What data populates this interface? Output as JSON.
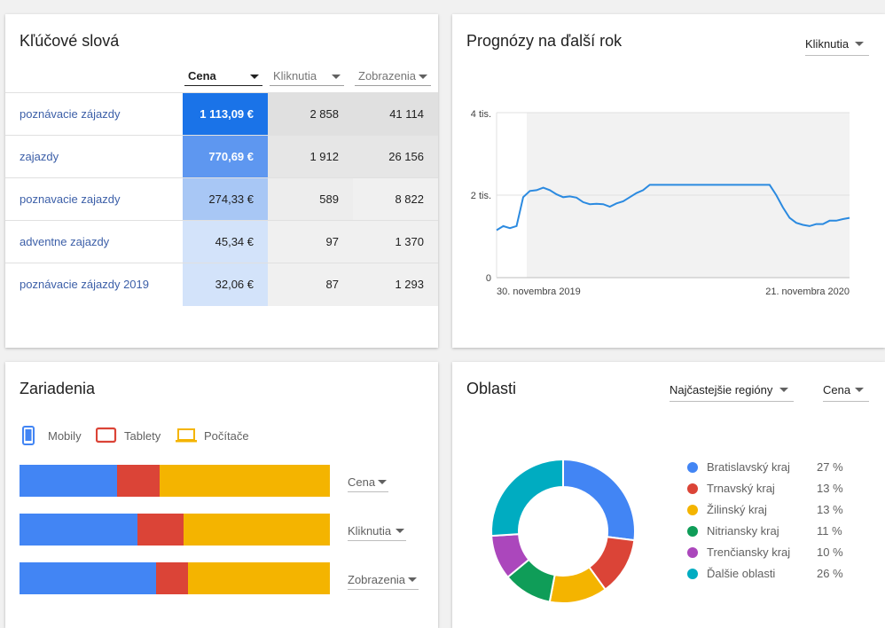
{
  "keywords": {
    "title": "Kľúčové slová",
    "columns": [
      {
        "label": "Cena",
        "active": true
      },
      {
        "label": "Kliknutia",
        "active": false
      },
      {
        "label": "Zobrazenia",
        "active": false
      }
    ],
    "rows": [
      {
        "keyword": "poznávacie zájazdy",
        "cost": "1 113,09 €",
        "clicks": "2 858",
        "impressions": "41 114",
        "cost_color": "#1a73e8",
        "cost_text": "#ffffff",
        "clicks_bg": "#e0e0e0",
        "imp_bg": "#e0e0e0"
      },
      {
        "keyword": "zajazdy",
        "cost": "770,69 €",
        "clicks": "1 912",
        "impressions": "26 156",
        "cost_color": "#5e97f0",
        "cost_text": "#ffffff",
        "clicks_bg": "#e6e6e6",
        "imp_bg": "#e6e6e6"
      },
      {
        "keyword": "poznavacie zajazdy",
        "cost": "274,33 €",
        "clicks": "589",
        "impressions": "8 822",
        "cost_color": "#a8c7f5",
        "cost_text": "#212121",
        "clicks_bg": "#ededed",
        "imp_bg": "#f0f0f0"
      },
      {
        "keyword": "adventne zajazdy",
        "cost": "45,34 €",
        "clicks": "97",
        "impressions": "1 370",
        "cost_color": "#d3e3fa",
        "cost_text": "#212121",
        "clicks_bg": "#f0f0f0",
        "imp_bg": "#f0f0f0"
      },
      {
        "keyword": "poznávacie zájazdy 2019",
        "cost": "32,06 €",
        "clicks": "87",
        "impressions": "1 293",
        "cost_color": "#d3e3fa",
        "cost_text": "#212121",
        "clicks_bg": "#f0f0f0",
        "imp_bg": "#f0f0f0"
      }
    ]
  },
  "forecast": {
    "title": "Prognózy na ďalší rok",
    "metric_dropdown": "Kliknutia",
    "chart_data": {
      "type": "line",
      "x_start_label": "30. novembra 2019",
      "x_end_label": "21. novembra 2020",
      "y_tick_labels": [
        "4 tis.",
        "2 tis.",
        "0"
      ],
      "ylim": [
        0,
        4000
      ],
      "series": [
        {
          "color": "#2b8ae0",
          "values": [
            1150,
            1250,
            1200,
            1250,
            1950,
            2100,
            2120,
            2180,
            2120,
            2020,
            1950,
            1970,
            1940,
            1830,
            1780,
            1790,
            1780,
            1720,
            1800,
            1850,
            1950,
            2050,
            2120,
            2250,
            2250,
            2250,
            2250,
            2250,
            2250,
            2250,
            2250,
            2250,
            2250,
            2250,
            2250,
            2250,
            2250,
            2250,
            2250,
            2250,
            2250,
            2250,
            2000,
            1700,
            1450,
            1330,
            1280,
            1250,
            1300,
            1300,
            1380,
            1380,
            1420,
            1450
          ]
        }
      ]
    }
  },
  "devices": {
    "title": "Zariadenia",
    "legend": [
      {
        "label": "Mobily",
        "color": "#4285f4",
        "icon": "phone-icon"
      },
      {
        "label": "Tablety",
        "color": "#db4437",
        "icon": "tablet-icon"
      },
      {
        "label": "Počítače",
        "color": "#f4b400",
        "icon": "laptop-icon"
      }
    ],
    "bars": [
      {
        "metric": "Cena",
        "shares": [
          0.314,
          0.137,
          0.549
        ]
      },
      {
        "metric": "Kliknutia",
        "shares": [
          0.38,
          0.148,
          0.472
        ]
      },
      {
        "metric": "Zobrazenia",
        "shares": [
          0.44,
          0.103,
          0.457
        ]
      }
    ]
  },
  "regions": {
    "title": "Oblasti",
    "filter_dropdown": "Najčastejšie regióny",
    "metric_dropdown": "Cena",
    "items": [
      {
        "name": "Bratislavský kraj",
        "pct": "27 %",
        "value": 27,
        "color": "#4285f4"
      },
      {
        "name": "Trnavský kraj",
        "pct": "13 %",
        "value": 13,
        "color": "#db4437"
      },
      {
        "name": "Žilinský kraj",
        "pct": "13 %",
        "value": 13,
        "color": "#f4b400"
      },
      {
        "name": "Nitriansky kraj",
        "pct": "11 %",
        "value": 11,
        "color": "#0f9d58"
      },
      {
        "name": "Trenčiansky kraj",
        "pct": "10 %",
        "value": 10,
        "color": "#ab47bc"
      },
      {
        "name": "Ďalšie oblasti",
        "pct": "26 %",
        "value": 26,
        "color": "#00acc1"
      }
    ]
  }
}
